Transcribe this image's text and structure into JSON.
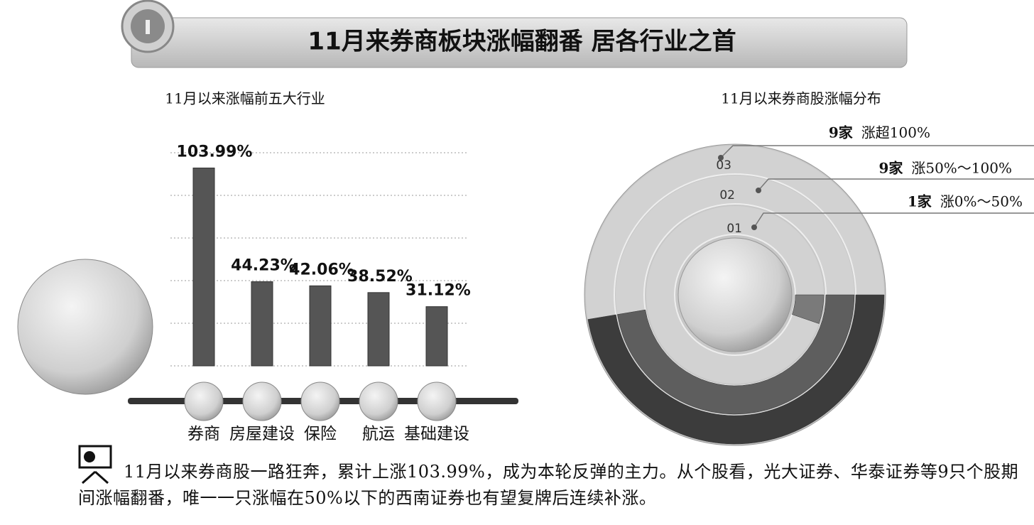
{
  "header": {
    "title": "11月来券商板块涨幅翻番  居各行业之首"
  },
  "chart_data": [
    {
      "type": "bar",
      "title": "11月以来涨幅前五大行业",
      "categories": [
        "券商",
        "房屋建设",
        "保险",
        "航运",
        "基础建设"
      ],
      "values": [
        103.99,
        44.23,
        42.06,
        38.52,
        31.12
      ],
      "value_labels": [
        "103.99%",
        "44.23%",
        "42.06%",
        "38.52%",
        "31.12%"
      ],
      "color": "#555555",
      "ylim": [
        0,
        112
      ],
      "grid": true
    },
    {
      "type": "ring",
      "title": "11月以来券商股涨幅分布",
      "categories": [
        "01",
        "02",
        "03"
      ],
      "names": [
        "涨0%～50%",
        "涨50%～100%",
        "涨超100%"
      ],
      "values": [
        1,
        9,
        9
      ],
      "value_labels": [
        "1家",
        "9家",
        "9家"
      ],
      "colors": [
        "#7a7a7a",
        "#5e5e5e",
        "#3c3c3c"
      ]
    }
  ],
  "footer": {
    "text": "11月以来券商股一路狂奔，累计上涨103.99%，成为本轮反弹的主力。从个股看，光大证券、华泰证券等9只个股期间涨幅翻番，唯一一只涨幅在50%以下的西南证券也有望复牌后连续补涨。"
  }
}
